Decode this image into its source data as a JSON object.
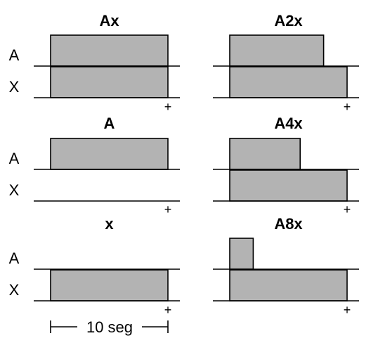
{
  "time_scale": {
    "label": "10 seg",
    "duration": 10
  },
  "row_labels": {
    "a": "A",
    "x": "X"
  },
  "plus_symbol": "+",
  "colors": {
    "pulse_fill": "#b3b3b3",
    "stroke": "#000000",
    "background": "#ffffff"
  },
  "panels": [
    {
      "title": "Ax",
      "rows": [
        {
          "label": "A",
          "duration": 10
        },
        {
          "label": "X",
          "duration": 10
        }
      ]
    },
    {
      "title": "A2x",
      "rows": [
        {
          "label": "A",
          "duration": 8
        },
        {
          "label": "X",
          "duration": 10
        }
      ]
    },
    {
      "title": "A",
      "rows": [
        {
          "label": "A",
          "duration": 10
        },
        {
          "label": "X",
          "duration": 0
        }
      ]
    },
    {
      "title": "A4x",
      "rows": [
        {
          "label": "A",
          "duration": 6
        },
        {
          "label": "X",
          "duration": 10
        }
      ]
    },
    {
      "title": "x",
      "rows": [
        {
          "label": "A",
          "duration": 0
        },
        {
          "label": "X",
          "duration": 10
        }
      ]
    },
    {
      "title": "A8x",
      "rows": [
        {
          "label": "A",
          "duration": 2
        },
        {
          "label": "X",
          "duration": 10
        }
      ]
    }
  ]
}
